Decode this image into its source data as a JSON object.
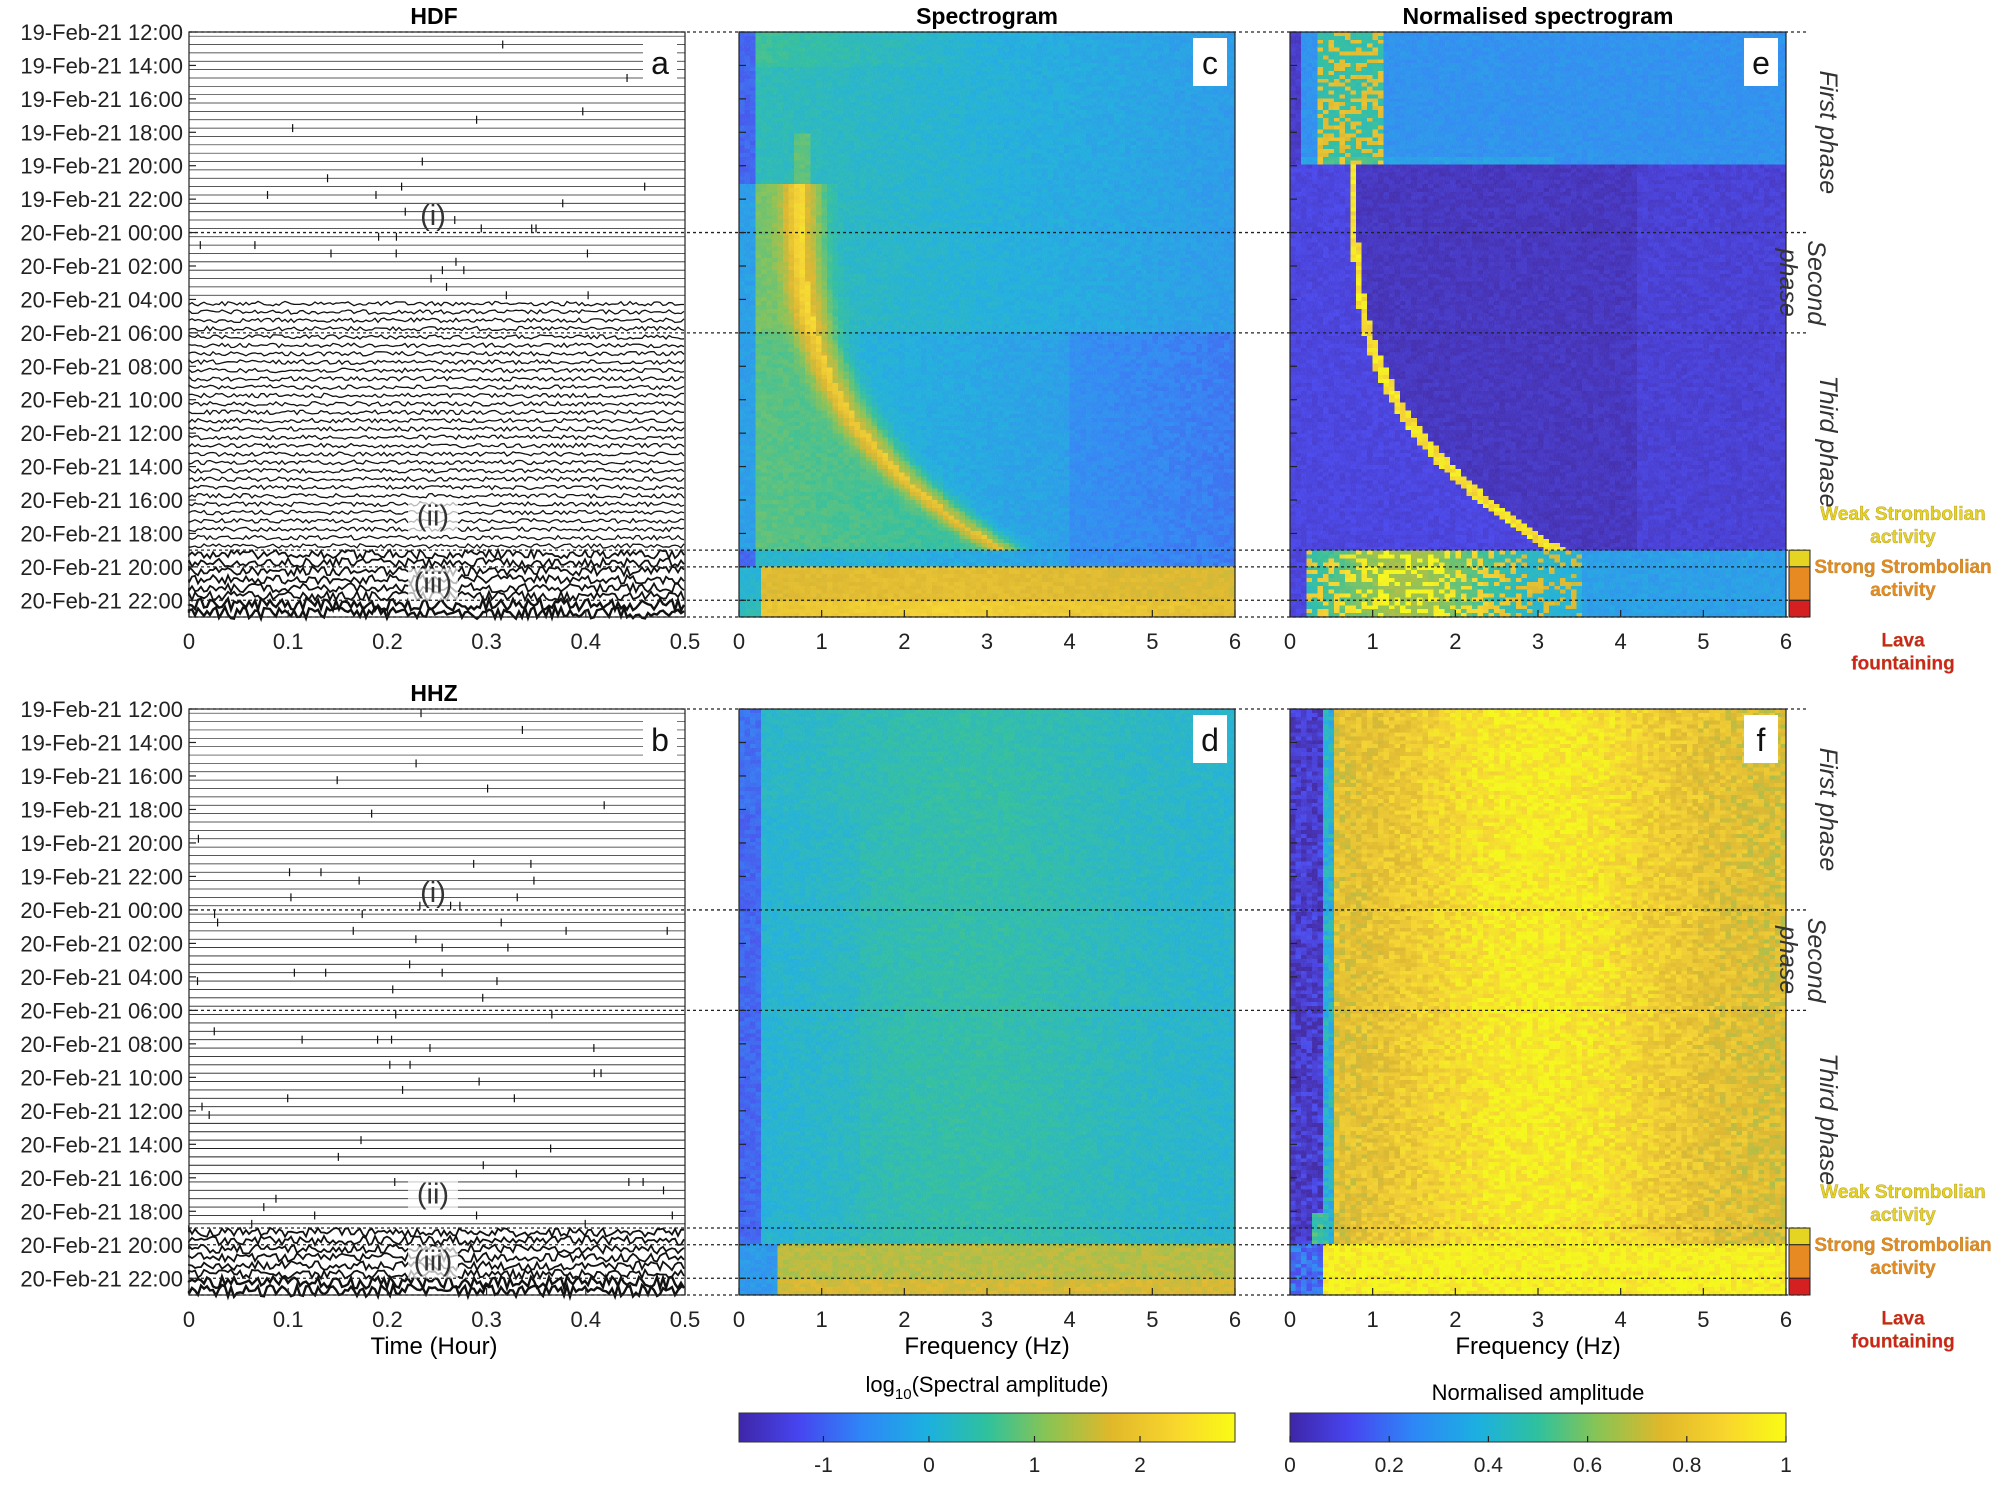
{
  "chart_data": {
    "type": "heatmap",
    "panels": [
      {
        "id": "a",
        "column": "HDF",
        "kind": "seismogram",
        "xlabel": "",
        "x_ticks": [
          "0",
          "0.1",
          "0.2",
          "0.3",
          "0.4",
          "0.5"
        ],
        "xlim": [
          0,
          0.5
        ],
        "annotations": [
          "(i)",
          "(ii)",
          "(iii)"
        ]
      },
      {
        "id": "c",
        "column": "Spectrogram",
        "kind": "spectrogram",
        "xlabel": "",
        "x_ticks": [
          "0",
          "1",
          "2",
          "3",
          "4",
          "5",
          "6"
        ],
        "xlim": [
          0,
          6
        ]
      },
      {
        "id": "e",
        "column": "Normalised spectrogram",
        "kind": "normalised_spectrogram",
        "xlabel": "",
        "x_ticks": [
          "0",
          "1",
          "2",
          "3",
          "4",
          "5",
          "6"
        ],
        "xlim": [
          0,
          6
        ]
      },
      {
        "id": "b",
        "column": "HHZ",
        "kind": "seismogram",
        "xlabel": "Time (Hour)",
        "x_ticks": [
          "0",
          "0.1",
          "0.2",
          "0.3",
          "0.4",
          "0.5"
        ],
        "xlim": [
          0,
          0.5
        ],
        "annotations": [
          "(i)",
          "(ii)",
          "(iii)"
        ]
      },
      {
        "id": "d",
        "column": "",
        "kind": "spectrogram",
        "xlabel": "Frequency (Hz)",
        "x_ticks": [
          "0",
          "1",
          "2",
          "3",
          "4",
          "5",
          "6"
        ],
        "xlim": [
          0,
          6
        ]
      },
      {
        "id": "f",
        "column": "",
        "kind": "normalised_spectrogram",
        "xlabel": "Frequency (Hz)",
        "x_ticks": [
          "0",
          "1",
          "2",
          "3",
          "4",
          "5",
          "6"
        ],
        "xlim": [
          0,
          6
        ]
      }
    ],
    "time_ticks": [
      "19-Feb-21 12:00",
      "19-Feb-21 14:00",
      "19-Feb-21 16:00",
      "19-Feb-21 18:00",
      "19-Feb-21 20:00",
      "19-Feb-21 22:00",
      "20-Feb-21 00:00",
      "20-Feb-21 02:00",
      "20-Feb-21 04:00",
      "20-Feb-21 06:00",
      "20-Feb-21 08:00",
      "20-Feb-21 10:00",
      "20-Feb-21 12:00",
      "20-Feb-21 14:00",
      "20-Feb-21 16:00",
      "20-Feb-21 18:00",
      "20-Feb-21 20:00",
      "20-Feb-21 22:00"
    ],
    "time_start": "19-Feb-21 12:00",
    "time_end": "20-Feb-21 23:00",
    "phase_boundaries": [
      "20-Feb-21 00:00",
      "20-Feb-21 06:00",
      "20-Feb-21 19:00",
      "20-Feb-21 20:00",
      "20-Feb-21 22:00"
    ],
    "phases": [
      "First phase",
      "Second phase",
      "Third phase"
    ],
    "activity_labels": [
      {
        "label": "Weak Strombolian activity",
        "lines": [
          "Weak Strombolian",
          "activity"
        ],
        "color": "#e6d422",
        "from": "20-Feb-21 19:00",
        "to": "20-Feb-21 20:00"
      },
      {
        "label": "Strong Strombolian activity",
        "lines": [
          "Strong Strombolian",
          "activity"
        ],
        "color": "#e88a22",
        "from": "20-Feb-21 20:00",
        "to": "20-Feb-21 22:00"
      },
      {
        "label": "Lava fountaining",
        "lines": [
          "Lava",
          "fountaining"
        ],
        "color": "#d42020",
        "from": "20-Feb-21 22:00",
        "to": "20-Feb-21 23:00"
      }
    ],
    "colorbars": [
      {
        "label": "log10(Spectral amplitude)",
        "label_prefix": "log",
        "label_sub": "10",
        "label_suffix": "(Spectral amplitude)",
        "ticks": [
          "-1",
          "0",
          "1",
          "2"
        ],
        "range": [
          -1.8,
          2.9
        ]
      },
      {
        "label": "Normalised amplitude",
        "ticks": [
          "0",
          "0.2",
          "0.4",
          "0.6",
          "0.8",
          "1"
        ],
        "range": [
          0,
          1
        ]
      }
    ],
    "colormap": [
      "#3e26a8",
      "#4745f0",
      "#2e87f7",
      "#1cb0e0",
      "#2fc19d",
      "#88c454",
      "#e0b82a",
      "#f9d62d",
      "#f9fb15"
    ]
  }
}
